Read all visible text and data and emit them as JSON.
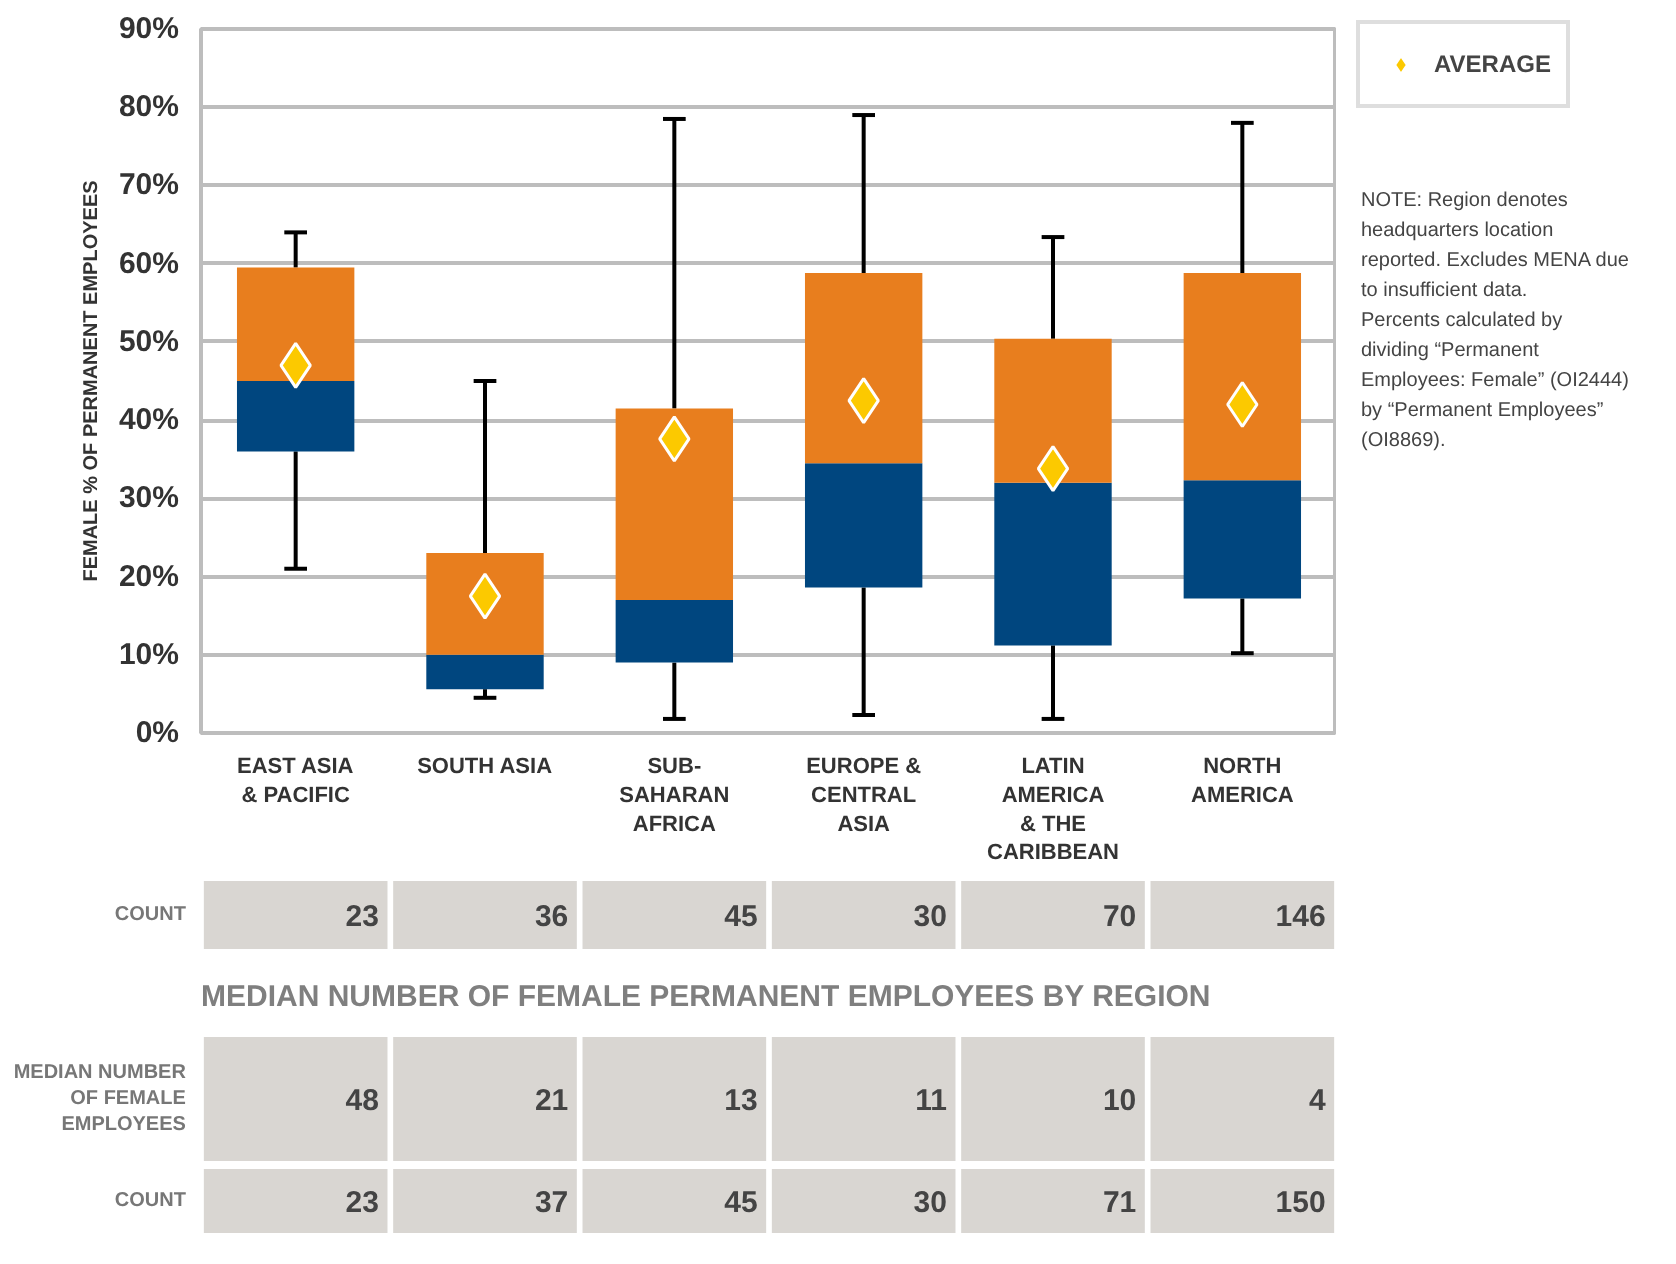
{
  "chart_data": {
    "type": "box",
    "ylabel": "FEMALE % OF PERMANENT EMPLOYEES",
    "categories": [
      "EAST ASIA\n& PACIFIC",
      "SOUTH ASIA",
      "SUB-\nSAHARAN\nAFRICA",
      "EUROPE &\nCENTRAL\nASIA",
      "LATIN\nAMERICA\n& THE\nCARIBBEAN",
      "NORTH\nAMERICA"
    ],
    "colors": [
      "#00467f",
      "#e87e1e"
    ],
    "series": [
      {
        "boxes": [
          {
            "low": 21,
            "q1": 36,
            "median": 45,
            "q3": 59.5,
            "high": 64
          },
          {
            "low": 4.5,
            "q1": 5.6,
            "median": 10,
            "q3": 23,
            "high": 45
          },
          {
            "low": 1.8,
            "q1": 9,
            "median": 17,
            "q3": 41.5,
            "high": 78.5
          },
          {
            "low": 2.3,
            "q1": 18.6,
            "median": 34.5,
            "q3": 58.8,
            "high": 79
          },
          {
            "low": 1.8,
            "q1": 11.2,
            "median": 32,
            "q3": 50.4,
            "high": 63.4
          },
          {
            "low": 10.2,
            "q1": 17.2,
            "median": 32.3,
            "q3": 58.8,
            "high": 78
          }
        ]
      },
      {
        "type": "scatter",
        "name": "AVERAGE",
        "color": "#fcc900",
        "x": [
          "EAST ASIA\n& PACIFIC",
          "SOUTH ASIA",
          "SUB-\nSAHARAN\nAFRICA",
          "EUROPE &\nCENTRAL\nASIA",
          "LATIN\nAMERICA\n& THE\nCARIBBEAN",
          "NORTH\nAMERICA"
        ],
        "values": [
          47,
          17.5,
          37.6,
          42.5,
          33.8,
          42
        ]
      }
    ],
    "ylim": [
      0,
      90
    ],
    "yticks": [
      {
        "value": 0,
        "label": "0%"
      },
      {
        "value": 10,
        "label": "10%"
      },
      {
        "value": 20,
        "label": "20%"
      },
      {
        "value": 30,
        "label": "30%"
      },
      {
        "value": 40,
        "label": "40%"
      },
      {
        "value": 50,
        "label": "50%"
      },
      {
        "value": 60,
        "label": "60%"
      },
      {
        "value": 70,
        "label": "70%"
      },
      {
        "value": 80,
        "label": "80%"
      },
      {
        "value": 90,
        "label": "90%"
      }
    ],
    "grid": "y",
    "legend": "right",
    "marker": "diamond",
    "annotations": [
      "COUNT",
      "23",
      "36",
      "45",
      "30",
      "70",
      "146",
      "MEDIAN NUMBER OF FEMALE PERMANENT EMPLOYEES BY REGION",
      "MEDIAN NUMBER\nOF FEMALE\nEMPLOYEES",
      "48",
      "21",
      "13",
      "11",
      "10",
      "4",
      "COUNT",
      "23",
      "37",
      "45",
      "30",
      "71",
      "150",
      "NOTE: Region denotes headquarters location reported. Excludes MENA due to insufficient data. Percents calculated by dividing “Permanent Employees: Female” (OI2444) by “Permanent Employees” (OI8869)."
    ]
  }
}
